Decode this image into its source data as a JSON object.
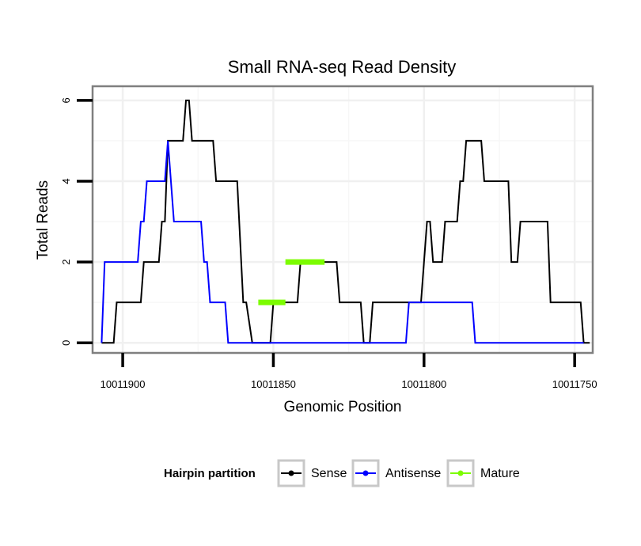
{
  "chart_data": {
    "type": "line",
    "title": "Small RNA-seq Read Density",
    "xlabel": "Genomic Position",
    "ylabel": "Total Reads",
    "x_reversed": true,
    "xlim": [
      10011910,
      10011744
    ],
    "ylim": [
      -0.25,
      6.35
    ],
    "x_ticks": [
      10011900,
      10011850,
      10011800,
      10011750
    ],
    "x_tick_labels": [
      "10011900",
      "10011850",
      "10011800",
      "10011750"
    ],
    "y_ticks": [
      0,
      2,
      4,
      6
    ],
    "y_tick_labels": [
      "0",
      "2",
      "4",
      "6"
    ],
    "grid": true,
    "legend": {
      "title": "Hairpin partition",
      "position": "bottom",
      "entries": [
        "Sense",
        "Antisense",
        "Mature"
      ]
    },
    "series": [
      {
        "name": "Sense",
        "color": "#000000",
        "points": [
          [
            10011907,
            0
          ],
          [
            10011903,
            0
          ],
          [
            10011902,
            1
          ],
          [
            10011894,
            1
          ],
          [
            10011893,
            2
          ],
          [
            10011888,
            2
          ],
          [
            10011887,
            3
          ],
          [
            10011886,
            3
          ],
          [
            10011885,
            5
          ],
          [
            10011880,
            5
          ],
          [
            10011879,
            6
          ],
          [
            10011878,
            6
          ],
          [
            10011877,
            5
          ],
          [
            10011870,
            5
          ],
          [
            10011869,
            4
          ],
          [
            10011862,
            4
          ],
          [
            10011860,
            1
          ],
          [
            10011859,
            1
          ],
          [
            10011857,
            0
          ],
          [
            10011851,
            0
          ],
          [
            10011850,
            1
          ],
          [
            10011842,
            1
          ],
          [
            10011841,
            2
          ],
          [
            10011829,
            2
          ],
          [
            10011828,
            1
          ],
          [
            10011821,
            1
          ],
          [
            10011820,
            0
          ],
          [
            10011818,
            0
          ],
          [
            10011817,
            1
          ],
          [
            10011801,
            1
          ],
          [
            10011800,
            2
          ],
          [
            10011799,
            3
          ],
          [
            10011798,
            3
          ],
          [
            10011797,
            2
          ],
          [
            10011794,
            2
          ],
          [
            10011793,
            3
          ],
          [
            10011789,
            3
          ],
          [
            10011788,
            4
          ],
          [
            10011787,
            4
          ],
          [
            10011786,
            5
          ],
          [
            10011781,
            5
          ],
          [
            10011780,
            4
          ],
          [
            10011772,
            4
          ],
          [
            10011771,
            2
          ],
          [
            10011769,
            2
          ],
          [
            10011768,
            3
          ],
          [
            10011759,
            3
          ],
          [
            10011758,
            1
          ],
          [
            10011748,
            1
          ],
          [
            10011747,
            0
          ],
          [
            10011745,
            0
          ]
        ]
      },
      {
        "name": "Antisense",
        "color": "#0000ff",
        "points": [
          [
            10011907,
            0
          ],
          [
            10011906,
            2
          ],
          [
            10011895,
            2
          ],
          [
            10011894,
            3
          ],
          [
            10011893,
            3
          ],
          [
            10011892,
            4
          ],
          [
            10011886,
            4
          ],
          [
            10011885,
            5
          ],
          [
            10011883,
            3
          ],
          [
            10011874,
            3
          ],
          [
            10011873,
            2
          ],
          [
            10011872,
            2
          ],
          [
            10011871,
            1
          ],
          [
            10011866,
            1
          ],
          [
            10011865,
            0
          ],
          [
            10011806,
            0
          ],
          [
            10011805,
            1
          ],
          [
            10011784,
            1
          ],
          [
            10011783,
            0
          ],
          [
            10011747,
            0
          ]
        ]
      },
      {
        "name": "Mature",
        "color": "#7cfc00",
        "segments": [
          {
            "from": 10011855,
            "to": 10011846,
            "value": 1
          },
          {
            "from": 10011846,
            "to": 10011833,
            "value": 2
          }
        ]
      }
    ]
  }
}
